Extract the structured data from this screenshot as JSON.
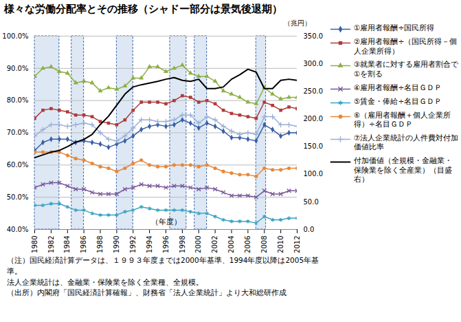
{
  "chart_data": {
    "type": "line",
    "title": "様々な労働分配率とその推移（シャドー部分は景気後退期）",
    "x_label": "（年度）",
    "y2_label": "（兆円）",
    "x": [
      1980,
      1981,
      1982,
      1983,
      1984,
      1985,
      1986,
      1987,
      1988,
      1989,
      1990,
      1991,
      1992,
      1993,
      1994,
      1995,
      1996,
      1997,
      1998,
      1999,
      2000,
      2001,
      2002,
      2003,
      2004,
      2005,
      2006,
      2007,
      2008,
      2009,
      2010,
      2011,
      2012
    ],
    "xlim": [
      1980,
      2012
    ],
    "xticks": [
      1980,
      1982,
      1984,
      1986,
      1988,
      1990,
      1992,
      1994,
      1996,
      1998,
      2000,
      2002,
      2004,
      2006,
      2008,
      2010,
      2012
    ],
    "ylim": [
      40,
      100
    ],
    "yticks": [
      {
        "value": 40,
        "label": "40.0%"
      },
      {
        "value": 50,
        "label": "50.0%"
      },
      {
        "value": 60,
        "label": "60.0%"
      },
      {
        "value": 70,
        "label": "70.0%"
      },
      {
        "value": 80,
        "label": "80.0%"
      },
      {
        "value": 90,
        "label": "90.0%"
      },
      {
        "value": 100,
        "label": "100.0%"
      }
    ],
    "y2lim": [
      0,
      350
    ],
    "y2ticks": [
      {
        "value": 0,
        "label": "0.0"
      },
      {
        "value": 50,
        "label": "50.0"
      },
      {
        "value": 100,
        "label": "100.0"
      },
      {
        "value": 150,
        "label": "150.0"
      },
      {
        "value": 200,
        "label": "200.0"
      },
      {
        "value": 250,
        "label": "250.0"
      },
      {
        "value": 300,
        "label": "300.0"
      },
      {
        "value": 350,
        "label": "350.0"
      }
    ],
    "grid": true,
    "shaded_periods": [
      [
        1980,
        1983
      ],
      [
        1984.5,
        1986
      ],
      [
        1990,
        1992
      ],
      [
        1996.5,
        1998.5
      ],
      [
        1999.5,
        2001
      ],
      [
        2007,
        2008.2
      ]
    ],
    "series": [
      {
        "name": "①雇用者報酬÷国民所得",
        "color": "#3a5fa8",
        "marker": "diamond",
        "values": [
          64.5,
          67,
          68,
          68,
          68,
          67,
          67.5,
          67,
          66.5,
          65.5,
          66.5,
          67.5,
          69,
          71,
          72,
          72.5,
          72,
          72.5,
          74,
          73,
          71.5,
          73,
          72,
          70.5,
          68.5,
          68.5,
          68,
          67.5,
          72.5,
          71,
          69,
          70,
          70
        ]
      },
      {
        "name": "②雇用者報酬÷（国民所得－個人企業所得）",
        "color": "#b03a3a",
        "marker": "square",
        "values": [
          74.5,
          77,
          77.5,
          77,
          76.5,
          75.5,
          75.5,
          75,
          73.5,
          73,
          72.5,
          74,
          77,
          79.5,
          79.5,
          79.5,
          79,
          80,
          81.5,
          81,
          79.5,
          80,
          79,
          77,
          76,
          75.5,
          75,
          74.5,
          79.5,
          78.5,
          77,
          78,
          77.5
        ]
      },
      {
        "name": "③就業者に対する雇用者割合で①を割る",
        "color": "#8db043",
        "marker": "triangle",
        "values": [
          87.5,
          90,
          90.5,
          89,
          88.5,
          85.5,
          86,
          85.5,
          83,
          84,
          83.5,
          84.5,
          87,
          87,
          90.5,
          90.5,
          89,
          90,
          91,
          88.5,
          87.5,
          87.5,
          86,
          83,
          82,
          81,
          79.5,
          79,
          84,
          82,
          80.5,
          81,
          81
        ]
      },
      {
        "name": "④雇用者報酬÷名目ＧＤＰ",
        "color": "#7a559b",
        "marker": "times",
        "values": [
          53,
          54,
          54.5,
          54.5,
          53.5,
          52.5,
          52.5,
          51.5,
          51,
          51,
          51,
          52.5,
          53,
          54,
          53.5,
          53.5,
          53,
          53.5,
          53.5,
          53,
          52.5,
          53,
          52.5,
          51.5,
          50.5,
          50.5,
          50.5,
          50,
          52,
          51,
          51,
          52,
          52
        ]
      },
      {
        "name": "⑤賃金・俸給÷名目ＧＤＰ",
        "color": "#3aa5c2",
        "marker": "asterisk",
        "values": [
          47.5,
          47.5,
          48,
          48,
          47,
          46,
          46,
          45,
          44.5,
          44.5,
          44.5,
          45.5,
          46,
          47,
          46.5,
          46,
          46,
          46,
          46,
          45.5,
          45,
          45,
          44,
          43,
          42.5,
          42.5,
          42.5,
          42,
          44,
          43,
          43,
          43.5,
          43.5
        ]
      },
      {
        "name": "⑥（雇用者報酬＋個人企業所得）÷名目ＧＤＰ",
        "color": "#e8883a",
        "marker": "circle",
        "values": [
          64,
          64,
          64,
          64,
          63,
          62,
          61.5,
          60.5,
          59.5,
          59,
          58,
          59,
          60.5,
          61.5,
          60,
          59.5,
          59.5,
          60,
          60,
          60,
          59.5,
          60,
          59,
          58,
          57.5,
          57,
          57,
          56.5,
          59,
          58.5,
          58.5,
          59,
          59
        ]
      },
      {
        "name": "⑦法人企業統計の人件費対付加価値比率",
        "color": "#9ab0d8",
        "marker": "plus",
        "values": [
          69,
          71,
          72.5,
          72.5,
          72,
          72.5,
          73,
          72.5,
          70,
          68,
          67.5,
          69,
          71.5,
          74,
          74,
          73.5,
          73.5,
          74,
          75.5,
          75.5,
          73,
          75,
          74,
          72,
          70.5,
          69.5,
          70,
          69.5,
          75,
          75,
          72.5,
          72.5,
          72
        ]
      },
      {
        "name": "付加価値（全規模・金融業・保険業を除く全産業）（目盛右）",
        "color": "#000000",
        "marker": "none",
        "axis": "y2",
        "values": [
          130,
          135,
          140,
          143,
          150,
          158,
          163,
          172,
          190,
          205,
          225,
          245,
          258,
          262,
          265,
          268,
          272,
          275,
          270,
          268,
          272,
          255,
          255,
          258,
          272,
          280,
          290,
          285,
          255,
          255,
          270,
          272,
          270
        ]
      }
    ],
    "notes": [
      "（注）国民経済計算データは、１９９３年度までは2000年基準、1994年度以降は2005年基準。",
      "法人企業統計は、金融業・保険業を除く全業種、全規模。",
      "（出所）内閣府「国民経済計算確報」、財務省「法人企業統計」より大和総研作成"
    ]
  }
}
